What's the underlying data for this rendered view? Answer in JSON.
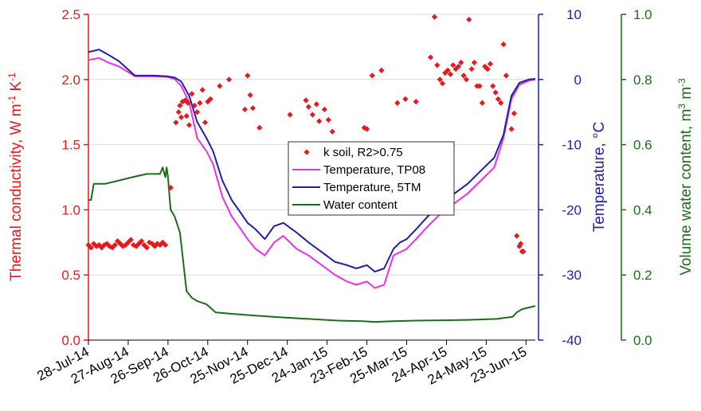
{
  "chart_data": {
    "type": "line",
    "colors": {
      "k_soil": "#e8191e",
      "temp_tp08": "#ee2ee8",
      "temp_5tm": "#1f1fa8",
      "water": "#1a6e1a",
      "left_axis": "#e8191e",
      "temp_axis": "#1f1fa8",
      "water_axis": "#1a6e1a",
      "grid": "#d9d9d9"
    },
    "x_axis": {
      "type": "date",
      "range": [
        "2014-07-28",
        "2015-06-30"
      ],
      "tick_labels": [
        "28-Jul-14",
        "27-Aug-14",
        "26-Sep-14",
        "26-Oct-14",
        "25-Nov-14",
        "25-Dec-14",
        "24-Jan-15",
        "23-Feb-15",
        "25-Mar-15",
        "24-Apr-15",
        "24-May-15",
        "23-Jun-15"
      ],
      "tick_dates": [
        "2014-07-28",
        "2014-08-27",
        "2014-09-26",
        "2014-10-26",
        "2014-11-25",
        "2014-12-25",
        "2015-01-24",
        "2015-02-23",
        "2015-03-25",
        "2015-04-24",
        "2015-05-24",
        "2015-06-23"
      ]
    },
    "y_left": {
      "label_parts": [
        {
          "text": "Thermal conductivity,  W m",
          "sup": false
        },
        {
          "text": "-1",
          "sup": true
        },
        {
          "text": " K",
          "sup": false
        },
        {
          "text": "-1",
          "sup": true
        }
      ],
      "range": [
        0,
        2.5
      ],
      "ticks": [
        0.0,
        0.5,
        1.0,
        1.5,
        2.0,
        2.5
      ],
      "tick_labels": [
        "0.0",
        "0.5",
        "1.0",
        "1.5",
        "2.0",
        "2.5"
      ]
    },
    "y_temp": {
      "label": "Temperature,  °C",
      "range": [
        -40,
        10
      ],
      "ticks": [
        -40,
        -30,
        -20,
        -10,
        0,
        10
      ],
      "tick_labels": [
        "-40",
        "-30",
        "-20",
        "-10",
        "0",
        "10"
      ]
    },
    "y_water": {
      "label_parts": [
        {
          "text": "Volume water content,  m",
          "sup": false
        },
        {
          "text": "3",
          "sup": true
        },
        {
          "text": " m",
          "sup": false
        },
        {
          "text": "-3",
          "sup": true
        }
      ],
      "range": [
        0,
        1.0
      ],
      "ticks": [
        0.0,
        0.2,
        0.4,
        0.6,
        0.8,
        1.0
      ],
      "tick_labels": [
        "0.0",
        "0.2",
        "0.4",
        "0.6",
        "0.8",
        "1.0"
      ]
    },
    "grid": "horizontal",
    "legend": {
      "placement": "center",
      "entries": [
        "k soil, R2>0.75",
        "Temperature, TP08",
        "Temperature, 5TM",
        "Water content"
      ]
    },
    "series": [
      {
        "name": "k soil, R2>0.75",
        "axis": "left",
        "style": "markers",
        "x": [
          "2014-07-28",
          "2014-07-30",
          "2014-08-01",
          "2014-08-03",
          "2014-08-05",
          "2014-08-07",
          "2014-08-09",
          "2014-08-11",
          "2014-08-13",
          "2014-08-15",
          "2014-08-17",
          "2014-08-19",
          "2014-08-21",
          "2014-08-23",
          "2014-08-25",
          "2014-08-27",
          "2014-08-29",
          "2014-08-31",
          "2014-09-02",
          "2014-09-04",
          "2014-09-06",
          "2014-09-08",
          "2014-09-10",
          "2014-09-12",
          "2014-09-14",
          "2014-09-16",
          "2014-09-18",
          "2014-09-20",
          "2014-09-22",
          "2014-09-24",
          "2014-09-28",
          "2014-10-02",
          "2014-10-04",
          "2014-10-05",
          "2014-10-06",
          "2014-10-07",
          "2014-10-09",
          "2014-10-10",
          "2014-10-11",
          "2014-10-12",
          "2014-10-14",
          "2014-10-16",
          "2014-10-18",
          "2014-10-20",
          "2014-10-22",
          "2014-10-24",
          "2014-10-26",
          "2014-10-28",
          "2014-11-04",
          "2014-11-11",
          "2014-11-23",
          "2014-11-25",
          "2014-11-27",
          "2014-11-29",
          "2014-12-04",
          "2014-12-27",
          "2015-01-08",
          "2015-01-10",
          "2015-01-13",
          "2015-01-16",
          "2015-01-18",
          "2015-01-22",
          "2015-01-25",
          "2015-01-28",
          "2015-02-21",
          "2015-02-23",
          "2015-02-27",
          "2015-03-06",
          "2015-03-18",
          "2015-03-24",
          "2015-04-01",
          "2015-04-12",
          "2015-04-15",
          "2015-04-17",
          "2015-04-19",
          "2015-04-21",
          "2015-04-23",
          "2015-04-25",
          "2015-04-27",
          "2015-04-29",
          "2015-05-01",
          "2015-05-03",
          "2015-05-05",
          "2015-05-07",
          "2015-05-09",
          "2015-05-11",
          "2015-05-13",
          "2015-05-15",
          "2015-05-17",
          "2015-05-19",
          "2015-05-21",
          "2015-05-23",
          "2015-05-25",
          "2015-05-27",
          "2015-05-29",
          "2015-05-31",
          "2015-06-02",
          "2015-06-04",
          "2015-06-06",
          "2015-06-08",
          "2015-06-12",
          "2015-06-14",
          "2015-06-16",
          "2015-06-18",
          "2015-06-19",
          "2015-06-20",
          "2015-06-21"
        ],
        "y": [
          0.73,
          0.71,
          0.74,
          0.72,
          0.73,
          0.71,
          0.73,
          0.74,
          0.72,
          0.71,
          0.73,
          0.76,
          0.74,
          0.72,
          0.73,
          0.75,
          0.77,
          0.73,
          0.72,
          0.74,
          0.76,
          0.73,
          0.71,
          0.75,
          0.74,
          0.72,
          0.74,
          0.73,
          0.75,
          0.73,
          1.17,
          1.67,
          1.75,
          1.8,
          1.71,
          1.83,
          1.84,
          1.72,
          1.82,
          1.65,
          1.89,
          1.8,
          1.75,
          1.82,
          1.92,
          1.67,
          1.83,
          1.85,
          1.95,
          2.0,
          1.77,
          2.03,
          1.88,
          1.78,
          1.63,
          1.73,
          1.84,
          1.79,
          1.73,
          1.81,
          1.68,
          1.77,
          1.69,
          1.6,
          1.63,
          1.62,
          2.03,
          2.07,
          1.82,
          1.85,
          1.83,
          2.17,
          2.48,
          2.11,
          2.0,
          1.97,
          2.05,
          2.07,
          2.04,
          2.11,
          2.08,
          2.1,
          2.13,
          2.03,
          2.0,
          2.46,
          2.08,
          2.13,
          1.95,
          1.95,
          1.82,
          2.1,
          2.08,
          2.12,
          1.95,
          1.9,
          1.85,
          1.82,
          2.27,
          2.03,
          1.62,
          1.74,
          0.8,
          0.72,
          0.74,
          0.68,
          0.68
        ]
      },
      {
        "name": "Temperature, TP08",
        "axis": "temp",
        "style": "line",
        "x": [
          "2014-07-28",
          "2014-08-05",
          "2014-08-12",
          "2014-08-20",
          "2014-09-01",
          "2014-09-15",
          "2014-09-25",
          "2014-10-01",
          "2014-10-06",
          "2014-10-12",
          "2014-10-18",
          "2014-10-25",
          "2014-10-30",
          "2014-11-06",
          "2014-11-13",
          "2014-11-20",
          "2014-11-25",
          "2014-12-01",
          "2014-12-08",
          "2014-12-15",
          "2014-12-22",
          "2015-01-01",
          "2015-01-10",
          "2015-01-20",
          "2015-01-30",
          "2015-02-08",
          "2015-02-15",
          "2015-02-23",
          "2015-03-01",
          "2015-03-08",
          "2015-03-15",
          "2015-03-20",
          "2015-03-25",
          "2015-04-01",
          "2015-04-10",
          "2015-04-20",
          "2015-04-30",
          "2015-05-10",
          "2015-05-20",
          "2015-05-30",
          "2015-06-06",
          "2015-06-12",
          "2015-06-18",
          "2015-06-25",
          "2015-06-30"
        ],
        "y": [
          3.0,
          3.3,
          2.6,
          2.0,
          0.5,
          0.5,
          0.4,
          0.1,
          -1.0,
          -3.5,
          -9.0,
          -11.0,
          -13.0,
          -18.0,
          -21.0,
          -23.0,
          -24.5,
          -26.0,
          -27.0,
          -25.0,
          -24.0,
          -26.0,
          -27.0,
          -28.5,
          -30.0,
          -31.0,
          -31.5,
          -31.0,
          -32.0,
          -31.5,
          -27.0,
          -26.5,
          -26.0,
          -24.5,
          -22.5,
          -20.5,
          -19.0,
          -17.5,
          -15.5,
          -13.5,
          -9.0,
          -3.0,
          -0.8,
          -0.2,
          0.0
        ]
      },
      {
        "name": "Temperature, 5TM",
        "axis": "temp",
        "style": "line",
        "x": [
          "2014-07-28",
          "2014-08-05",
          "2014-08-12",
          "2014-08-20",
          "2014-09-01",
          "2014-09-15",
          "2014-09-25",
          "2014-10-01",
          "2014-10-06",
          "2014-10-12",
          "2014-10-18",
          "2014-10-25",
          "2014-10-30",
          "2014-11-06",
          "2014-11-13",
          "2014-11-20",
          "2014-11-25",
          "2014-12-01",
          "2014-12-08",
          "2014-12-15",
          "2014-12-22",
          "2015-01-01",
          "2015-01-10",
          "2015-01-20",
          "2015-01-30",
          "2015-02-08",
          "2015-02-15",
          "2015-02-23",
          "2015-03-01",
          "2015-03-08",
          "2015-03-15",
          "2015-03-20",
          "2015-03-25",
          "2015-04-01",
          "2015-04-10",
          "2015-04-20",
          "2015-04-30",
          "2015-05-10",
          "2015-05-20",
          "2015-05-30",
          "2015-06-06",
          "2015-06-12",
          "2015-06-18",
          "2015-06-25",
          "2015-06-30"
        ],
        "y": [
          4.2,
          4.6,
          3.8,
          2.8,
          0.6,
          0.6,
          0.5,
          0.3,
          -0.3,
          -2.5,
          -6.5,
          -9.0,
          -11.0,
          -15.5,
          -18.5,
          -20.5,
          -22.0,
          -23.0,
          -24.5,
          -22.5,
          -22.0,
          -23.5,
          -25.0,
          -26.5,
          -28.0,
          -28.5,
          -29.0,
          -28.5,
          -29.5,
          -29.0,
          -26.0,
          -25.0,
          -24.5,
          -23.0,
          -21.0,
          -19.0,
          -17.5,
          -16.0,
          -14.0,
          -12.0,
          -8.5,
          -2.5,
          -0.5,
          0.0,
          0.1
        ]
      },
      {
        "name": "Water content",
        "axis": "water",
        "style": "line",
        "x": [
          "2014-07-28",
          "2014-07-30",
          "2014-08-01",
          "2014-08-10",
          "2014-08-20",
          "2014-08-30",
          "2014-09-10",
          "2014-09-20",
          "2014-09-22",
          "2014-09-24",
          "2014-09-25",
          "2014-09-26",
          "2014-09-27",
          "2014-09-28",
          "2014-10-01",
          "2014-10-05",
          "2014-10-10",
          "2014-10-14",
          "2014-10-18",
          "2014-10-25",
          "2014-11-01",
          "2014-11-15",
          "2014-12-01",
          "2014-12-20",
          "2015-01-10",
          "2015-02-01",
          "2015-02-20",
          "2015-03-01",
          "2015-03-15",
          "2015-04-01",
          "2015-04-20",
          "2015-05-10",
          "2015-06-01",
          "2015-06-10",
          "2015-06-13",
          "2015-06-16",
          "2015-06-20",
          "2015-06-25",
          "2015-06-30"
        ],
        "y": [
          0.43,
          0.43,
          0.48,
          0.48,
          0.49,
          0.5,
          0.51,
          0.51,
          0.53,
          0.5,
          0.53,
          0.5,
          0.45,
          0.4,
          0.38,
          0.33,
          0.15,
          0.13,
          0.12,
          0.11,
          0.085,
          0.08,
          0.075,
          0.07,
          0.065,
          0.06,
          0.058,
          0.056,
          0.058,
          0.06,
          0.061,
          0.062,
          0.065,
          0.07,
          0.072,
          0.085,
          0.095,
          0.1,
          0.105
        ]
      }
    ]
  }
}
